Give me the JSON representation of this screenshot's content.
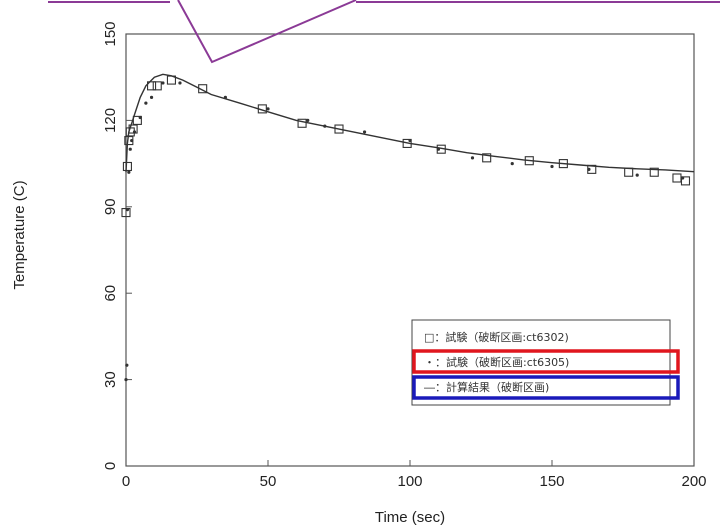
{
  "chart_data": {
    "type": "scatter",
    "title": "",
    "xlabel": "Time (sec)",
    "ylabel": "Temperature (C)",
    "xlim": [
      0,
      200
    ],
    "ylim": [
      0,
      150
    ],
    "xticks": [
      "0",
      "50",
      "100",
      "150",
      "200"
    ],
    "yticks": [
      "0",
      "30",
      "60",
      "90",
      "120",
      "150"
    ],
    "x_tick_values": [
      0,
      50,
      100,
      150,
      200
    ],
    "y_tick_values": [
      0,
      30,
      60,
      90,
      120,
      150
    ],
    "grid": false,
    "legend_position": "bottom-right",
    "series": [
      {
        "name": "□：試験（破断区画:ct6302)",
        "marker": "square",
        "points": [
          [
            0,
            88
          ],
          [
            0.5,
            104
          ],
          [
            1,
            113
          ],
          [
            1.5,
            116
          ],
          [
            2.5,
            117
          ],
          [
            4,
            120
          ],
          [
            9,
            132
          ],
          [
            11,
            132
          ],
          [
            16,
            134
          ],
          [
            27,
            131
          ],
          [
            48,
            124
          ],
          [
            62,
            119
          ],
          [
            75,
            117
          ],
          [
            99,
            112
          ],
          [
            111,
            110
          ],
          [
            127,
            107
          ],
          [
            142,
            106
          ],
          [
            154,
            105
          ],
          [
            164,
            103
          ],
          [
            177,
            102
          ],
          [
            186,
            102
          ],
          [
            194,
            100
          ],
          [
            197,
            99
          ]
        ]
      },
      {
        "name": "・：試験（破断区画:ct6305)",
        "marker": "dot",
        "points": [
          [
            0,
            30
          ],
          [
            0.3,
            35
          ],
          [
            0.5,
            89
          ],
          [
            1,
            102
          ],
          [
            1.5,
            110
          ],
          [
            2,
            113
          ],
          [
            3,
            116
          ],
          [
            5,
            121
          ],
          [
            7,
            126
          ],
          [
            9,
            128
          ],
          [
            13,
            133
          ],
          [
            19,
            133
          ],
          [
            35,
            128
          ],
          [
            50,
            124
          ],
          [
            64,
            120
          ],
          [
            70,
            118
          ],
          [
            84,
            116
          ],
          [
            100,
            113
          ],
          [
            110,
            110
          ],
          [
            122,
            107
          ],
          [
            136,
            105
          ],
          [
            150,
            104
          ],
          [
            163,
            103
          ],
          [
            180,
            101
          ],
          [
            196,
            100
          ]
        ]
      },
      {
        "name": "―：計算結果（破断区画)",
        "marker": "line",
        "points": [
          [
            0,
            102
          ],
          [
            0.5,
            112
          ],
          [
            1,
            116
          ],
          [
            2,
            119
          ],
          [
            3,
            122
          ],
          [
            5,
            128
          ],
          [
            7,
            132
          ],
          [
            10,
            135
          ],
          [
            13,
            136
          ],
          [
            16,
            135.5
          ],
          [
            20,
            134
          ],
          [
            25,
            131.5
          ],
          [
            30,
            129
          ],
          [
            40,
            126
          ],
          [
            50,
            123
          ],
          [
            60,
            120
          ],
          [
            70,
            118
          ],
          [
            80,
            116
          ],
          [
            90,
            114
          ],
          [
            100,
            112
          ],
          [
            110,
            110.5
          ],
          [
            120,
            108.8
          ],
          [
            130,
            107.5
          ],
          [
            140,
            106.3
          ],
          [
            150,
            105.3
          ],
          [
            160,
            104.5
          ],
          [
            170,
            103.7
          ],
          [
            180,
            103.2
          ],
          [
            190,
            102.8
          ],
          [
            200,
            102.2
          ]
        ]
      }
    ],
    "annotation_colors": {
      "top_lines": "#8b3a96",
      "highlight_box_1": "#e0161e",
      "highlight_box_2": "#1a1aba"
    }
  }
}
